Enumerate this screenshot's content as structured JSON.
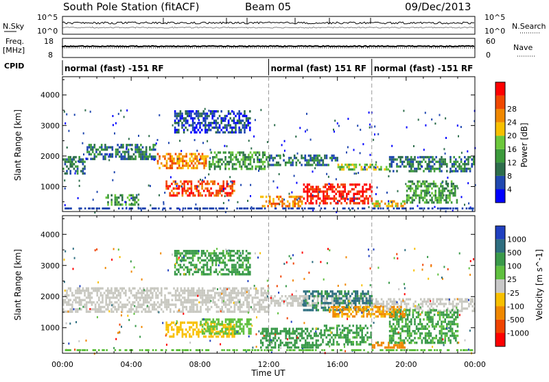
{
  "header": {
    "station": "South Pole Station (fitACF)",
    "beam": "Beam 05",
    "date": "09/Dec/2013"
  },
  "noise_panel": {
    "left_label": "N.Sky",
    "right_label": "N.Search",
    "left_ticks": [
      "10^5",
      "10^0"
    ],
    "right_ticks": [
      "10^5",
      "10^0"
    ]
  },
  "freq_panel": {
    "left_label_1": "Freq.",
    "left_label_2": "[MHz]",
    "right_label": "Nave",
    "left_ticks": [
      "18",
      "8"
    ],
    "right_ticks": [
      "60",
      "0"
    ]
  },
  "cpid": {
    "label": "CPID",
    "segments": [
      {
        "start_hour": 0,
        "end_hour": 12,
        "text": "normal (fast) -151 RF"
      },
      {
        "start_hour": 12,
        "end_hour": 18,
        "text": "normal (fast) 151 RF"
      },
      {
        "start_hour": 18,
        "end_hour": 24,
        "text": "normal (fast) -151 RF"
      }
    ]
  },
  "x_axis": {
    "label": "Time UT",
    "ticks": [
      "00:00",
      "04:00",
      "08:00",
      "12:00",
      "16:00",
      "20:00",
      "00:00"
    ]
  },
  "power_colorbar": {
    "label": "Power [dB]",
    "ticks": [
      "4",
      "8",
      "12",
      "16",
      "20",
      "24",
      "28"
    ],
    "colors": [
      "#0000ff",
      "#2048b0",
      "#2e6e4c",
      "#3c9a3c",
      "#6cc83c",
      "#f8c000",
      "#f08800",
      "#f04800",
      "#ff0000"
    ]
  },
  "velocity_colorbar": {
    "label": "Velocity [m s^-1]",
    "ticks": [
      "1000",
      "500",
      "100",
      "25",
      "-25",
      "-100",
      "-500",
      "-1000"
    ],
    "colors": [
      "#2040c0",
      "#2e6e80",
      "#3a9a4a",
      "#60c040",
      "#c8c8c8",
      "#f8c000",
      "#f08800",
      "#f04400",
      "#ff0000"
    ]
  },
  "ground_scatter_color": "#c8c8c0",
  "chart_data": [
    {
      "type": "heatmap",
      "name": "Power",
      "ylabel": "Slant Range [km]",
      "xlabel": "",
      "xlim": [
        0,
        24
      ],
      "ylim": [
        180,
        4600
      ],
      "yticks": [
        "1000",
        "2000",
        "3000",
        "4000"
      ],
      "ytick_values": [
        1000,
        2000,
        3000,
        4000
      ],
      "bands": [
        {
          "t0": 0,
          "t1": 1.4,
          "r0": 1400,
          "r1": 2000,
          "level": 2
        },
        {
          "t0": 1.4,
          "t1": 5.5,
          "r0": 1850,
          "r1": 2400,
          "level": 2
        },
        {
          "t0": 5.5,
          "t1": 8.5,
          "r0": 1600,
          "r1": 2100,
          "level": 6
        },
        {
          "t0": 8.5,
          "t1": 12,
          "r0": 1550,
          "r1": 2150,
          "level": 3
        },
        {
          "t0": 12,
          "t1": 16,
          "r0": 1650,
          "r1": 2050,
          "level": 2
        },
        {
          "t0": 16,
          "t1": 19,
          "r0": 1500,
          "r1": 1750,
          "level": 4
        },
        {
          "t0": 19,
          "t1": 24,
          "r0": 1500,
          "r1": 2000,
          "level": 2
        },
        {
          "t0": 6,
          "t1": 10,
          "r0": 650,
          "r1": 1200,
          "level": 7
        },
        {
          "t0": 11.5,
          "t1": 14,
          "r0": 350,
          "r1": 700,
          "level": 6
        },
        {
          "t0": 14,
          "t1": 18,
          "r0": 400,
          "r1": 1100,
          "level": 8
        },
        {
          "t0": 18,
          "t1": 20,
          "r0": 350,
          "r1": 550,
          "level": 5
        },
        {
          "t0": 20,
          "t1": 23,
          "r0": 400,
          "r1": 1200,
          "level": 3
        },
        {
          "t0": 2.5,
          "t1": 4.5,
          "r0": 350,
          "r1": 750,
          "level": 3
        },
        {
          "t0": 6.5,
          "t1": 11,
          "r0": 2700,
          "r1": 3500,
          "level": 1
        }
      ]
    },
    {
      "type": "heatmap",
      "name": "Velocity",
      "ylabel": "Slant Range [km]",
      "xlabel": "Time UT",
      "xlim": [
        0,
        24
      ],
      "ylim": [
        180,
        4600
      ],
      "yticks": [
        "1000",
        "2000",
        "3000",
        "4000"
      ],
      "ytick_values": [
        1000,
        2000,
        3000,
        4000
      ],
      "bands": [
        {
          "t0": 0,
          "t1": 12,
          "r0": 1500,
          "r1": 2300,
          "value": 0,
          "kind": "ground"
        },
        {
          "t0": 12,
          "t1": 18,
          "r0": 1650,
          "r1": 2050,
          "value": 0,
          "kind": "ground"
        },
        {
          "t0": 18,
          "t1": 24,
          "r0": 1500,
          "r1": 1950,
          "value": 0,
          "kind": "ground"
        },
        {
          "t0": 6,
          "t1": 10,
          "r0": 650,
          "r1": 1200,
          "value": -60
        },
        {
          "t0": 8,
          "t1": 11,
          "r0": 800,
          "r1": 1300,
          "value": 60
        },
        {
          "t0": 11.5,
          "t1": 15,
          "r0": 300,
          "r1": 1000,
          "value": 300
        },
        {
          "t0": 15,
          "t1": 18,
          "r0": 400,
          "r1": 1100,
          "value": 150
        },
        {
          "t0": 14,
          "t1": 18,
          "r0": 1500,
          "r1": 2200,
          "value": 600
        },
        {
          "t0": 18,
          "t1": 20,
          "r0": 350,
          "r1": 550,
          "value": -300
        },
        {
          "t0": 19,
          "t1": 23,
          "r0": 500,
          "r1": 1600,
          "value": 120
        },
        {
          "t0": 15.5,
          "t1": 20,
          "r0": 1300,
          "r1": 1700,
          "value": -120
        },
        {
          "t0": 6.5,
          "t1": 11,
          "r0": 2700,
          "r1": 3500,
          "value": 150
        }
      ]
    }
  ]
}
